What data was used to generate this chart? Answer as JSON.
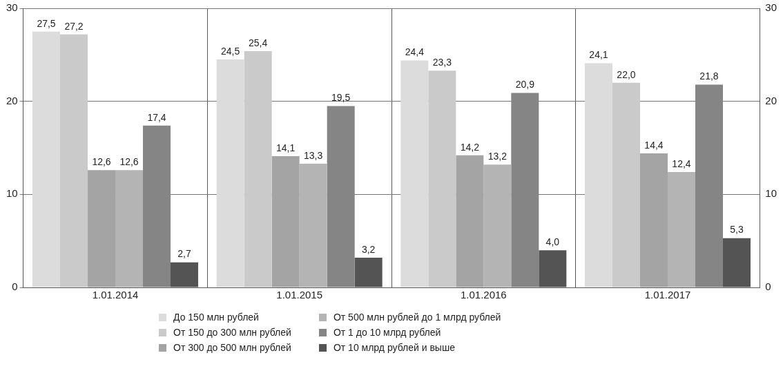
{
  "chart_data": {
    "type": "bar",
    "categories": [
      "1.01.2014",
      "1.01.2015",
      "1.01.2016",
      "1.01.2017"
    ],
    "series": [
      {
        "name": "До 150 млн рублей",
        "color": "#dcdcdc",
        "values": [
          27.5,
          24.5,
          24.4,
          24.1
        ],
        "value_labels": [
          "27,5",
          "24,5",
          "24,4",
          "24,1"
        ]
      },
      {
        "name": "От 150 до 300 млн рублей",
        "color": "#cacaca",
        "values": [
          27.2,
          25.4,
          23.3,
          22.0
        ],
        "value_labels": [
          "27,2",
          "25,4",
          "23,3",
          "22,0"
        ]
      },
      {
        "name": "От 300 до 500 млн рублей",
        "color": "#a4a4a4",
        "values": [
          12.6,
          14.1,
          14.2,
          14.4
        ],
        "value_labels": [
          "12,6",
          "14,1",
          "14,2",
          "14,4"
        ]
      },
      {
        "name": "От 500 млн рублей до 1 млрд рублей",
        "color": "#b4b4b4",
        "values": [
          12.6,
          13.3,
          13.2,
          12.4
        ],
        "value_labels": [
          "12,6",
          "13,3",
          "13,2",
          "12,4"
        ]
      },
      {
        "name": "От 1 до 10 млрд рублей",
        "color": "#858585",
        "values": [
          17.4,
          19.5,
          20.9,
          21.8
        ],
        "value_labels": [
          "17,4",
          "19,5",
          "20,9",
          "21,8"
        ]
      },
      {
        "name": "От 10 млрд рублей и выше",
        "color": "#545454",
        "values": [
          2.7,
          3.2,
          4.0,
          5.3
        ],
        "value_labels": [
          "2,7",
          "3,2",
          "4,0",
          "5,3"
        ]
      }
    ],
    "ylim": [
      0,
      30
    ],
    "yticks": [
      0,
      10,
      20,
      30
    ],
    "y2lim": [
      0,
      30
    ],
    "y2ticks": [
      0,
      10,
      20,
      30
    ],
    "grid": true,
    "legend": "bottom"
  }
}
